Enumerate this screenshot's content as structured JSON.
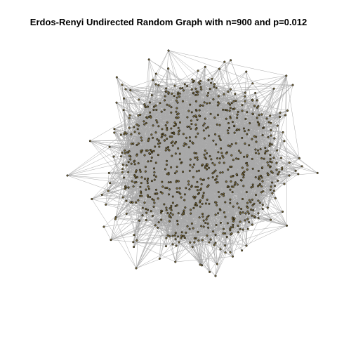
{
  "title": "Erdos-Renyi Undirected Random Graph with n=900 and p=0.012",
  "graph": {
    "type": "undirected",
    "model": "Erdos-Renyi",
    "n": 900,
    "p": 0.012,
    "layout": "force-directed",
    "edge_color": "#a9a9a9",
    "node_fill": "#7a6a3a",
    "node_stroke": "#000000",
    "background": "#ffffff"
  }
}
